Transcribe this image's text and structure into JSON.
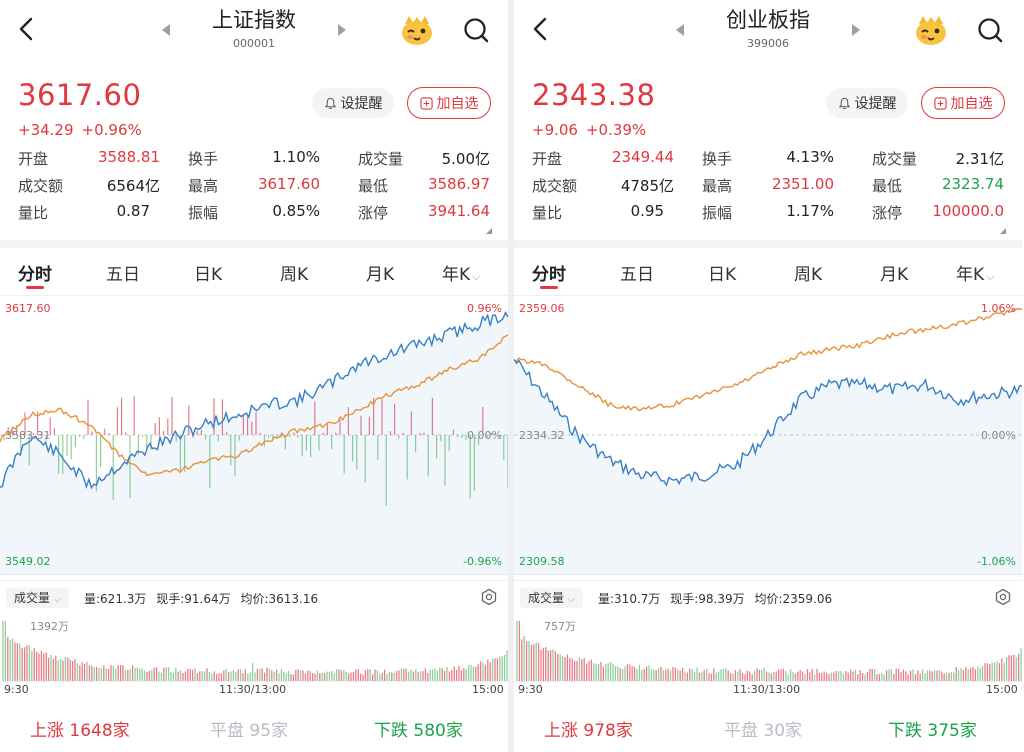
{
  "panels": [
    {
      "title": "上证指数",
      "code": "000001",
      "price": "3617.60",
      "change": "+34.29",
      "change_pct": "+0.96%",
      "remind_label": "设提醒",
      "add_label": "加自选",
      "stats": {
        "open_label": "开盘",
        "open": "3588.81",
        "turnover_label": "换手",
        "turnover": "1.10%",
        "volume_label": "成交量",
        "volume": "5.00亿",
        "amount_label": "成交额",
        "amount": "6564亿",
        "high_label": "最高",
        "high": "3617.60",
        "low_label": "最低",
        "low": "3586.97",
        "ratio_label": "量比",
        "ratio": "0.87",
        "amplitude_label": "振幅",
        "amplitude": "0.85%",
        "limit_label": "涨停",
        "limit": "3941.64"
      },
      "tabs": [
        "分时",
        "五日",
        "日K",
        "周K",
        "月K",
        "年K"
      ],
      "axis": {
        "top_left": "3617.60",
        "top_right": "0.96%",
        "mid_left": "3583.31",
        "mid_right": "0.00%",
        "bottom_left": "3549.02",
        "bottom_right": "-0.96%"
      },
      "volume_bar": {
        "selector": "成交量",
        "amount": "量:621.3万",
        "current": "现手:91.64万",
        "avg": "均价:3613.16",
        "peak": "1392万"
      },
      "time_labels": [
        "9:30",
        "11:30/13:00",
        "15:00"
      ],
      "footer": {
        "up_label": "上涨",
        "up": "1648家",
        "flat_label": "平盘",
        "flat": "95家",
        "down_label": "下跌",
        "down": "580家"
      }
    },
    {
      "title": "创业板指",
      "code": "399006",
      "price": "2343.38",
      "change": "+9.06",
      "change_pct": "+0.39%",
      "remind_label": "设提醒",
      "add_label": "加自选",
      "stats": {
        "open_label": "开盘",
        "open": "2349.44",
        "turnover_label": "换手",
        "turnover": "4.13%",
        "volume_label": "成交量",
        "volume": "2.31亿",
        "amount_label": "成交额",
        "amount": "4785亿",
        "high_label": "最高",
        "high": "2351.00",
        "low_label": "最低",
        "low": "2323.74",
        "ratio_label": "量比",
        "ratio": "0.95",
        "amplitude_label": "振幅",
        "amplitude": "1.17%",
        "limit_label": "涨停",
        "limit": "100000.0"
      },
      "tabs": [
        "分时",
        "五日",
        "日K",
        "周K",
        "月K",
        "年K"
      ],
      "axis": {
        "top_left": "2359.06",
        "top_right": "1.06%",
        "mid_left": "2334.32",
        "mid_right": "0.00%",
        "bottom_left": "2309.58",
        "bottom_right": "-1.06%"
      },
      "volume_bar": {
        "selector": "成交量",
        "amount": "量:310.7万",
        "current": "现手:98.39万",
        "avg": "均价:2359.06",
        "peak": "757万"
      },
      "time_labels": [
        "9:30",
        "11:30/13:00",
        "15:00"
      ],
      "footer": {
        "up_label": "上涨",
        "up": "978家",
        "flat_label": "平盘",
        "flat": "30家",
        "down_label": "下跌",
        "down": "375家"
      }
    }
  ],
  "colors": {
    "up": "#e0383e",
    "down": "#1aa34a",
    "price_line": "#3a7fc4",
    "avg_line": "#e8923a"
  },
  "icons": [
    "back-icon",
    "prev-arrow-icon",
    "next-arrow-icon",
    "mascot-icon",
    "search-icon",
    "bell-icon",
    "plus-square-icon",
    "chevron-down-icon",
    "settings-icon"
  ]
}
